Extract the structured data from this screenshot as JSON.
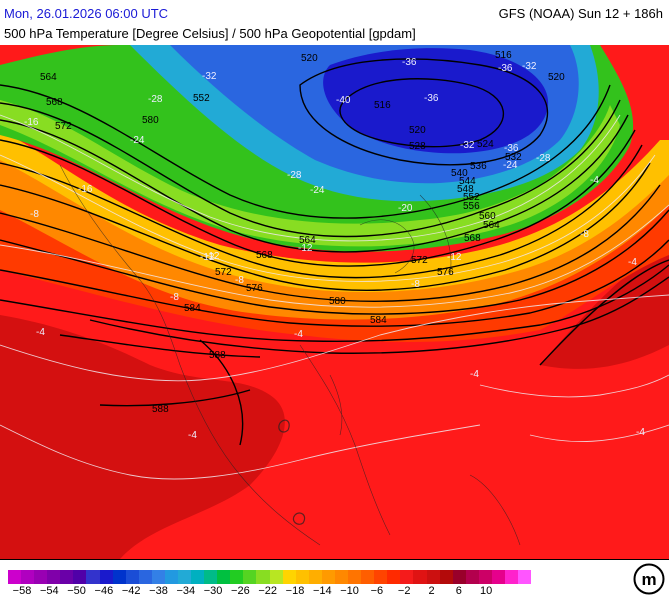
{
  "header": {
    "date": "Mon, 26.01.2026 06:00 UTC",
    "model": "GFS (NOAA) Sun 12 + 186h",
    "product": "500 hPa Temperature [Degree Celsius] / 500 hPa Geopotential [gpdam]"
  },
  "map": {
    "geopotential_labels": [
      "564",
      "568",
      "572",
      "580",
      "552",
      "520",
      "516",
      "536",
      "540",
      "544",
      "548",
      "552",
      "556",
      "560",
      "564",
      "568",
      "572",
      "576",
      "580",
      "584",
      "588",
      "588",
      "564",
      "568",
      "572",
      "576",
      "584",
      "520",
      "528",
      "524",
      "532",
      "516",
      "520"
    ],
    "temperature_labels": [
      "-32",
      "-36",
      "-32",
      "-36",
      "-40",
      "-36",
      "-36",
      "-32",
      "-28",
      "-28",
      "-24",
      "-24",
      "-28",
      "-24",
      "-20",
      "-16",
      "-12",
      "-16",
      "-8",
      "-12",
      "-8",
      "-8",
      "-4",
      "-4",
      "-4",
      "-4",
      "-4",
      "-4",
      "-12",
      "-8",
      "-8",
      "-4",
      "-12"
    ]
  },
  "legend": {
    "colors": [
      "#cc00cc",
      "#b000c0",
      "#9900b3",
      "#8000aa",
      "#6a00a8",
      "#5000a8",
      "#3333cc",
      "#1a1acc",
      "#0033cc",
      "#1a4dd6",
      "#2a66e0",
      "#3380e6",
      "#2299e0",
      "#22aad6",
      "#00b0c0",
      "#00bb88",
      "#00c040",
      "#22cc22",
      "#55d422",
      "#88dd22",
      "#b8e622",
      "#ffd400",
      "#ffc000",
      "#ffae00",
      "#ff9a00",
      "#ff8800",
      "#ff7400",
      "#ff5e00",
      "#ff4400",
      "#ff2a00",
      "#f51b1b",
      "#e01313",
      "#cc1010",
      "#b30a0a",
      "#99002a",
      "#b3004d",
      "#cc0066",
      "#e6008c",
      "#ff22cc",
      "#ff55ff"
    ],
    "ticks": [
      "−58",
      "−54",
      "−50",
      "−46",
      "−42",
      "−38",
      "−34",
      "−30",
      "−26",
      "−22",
      "−18",
      "−14",
      "−10",
      "−6",
      "−2",
      "2",
      "6",
      "10"
    ]
  },
  "logo": {
    "text": "m"
  }
}
